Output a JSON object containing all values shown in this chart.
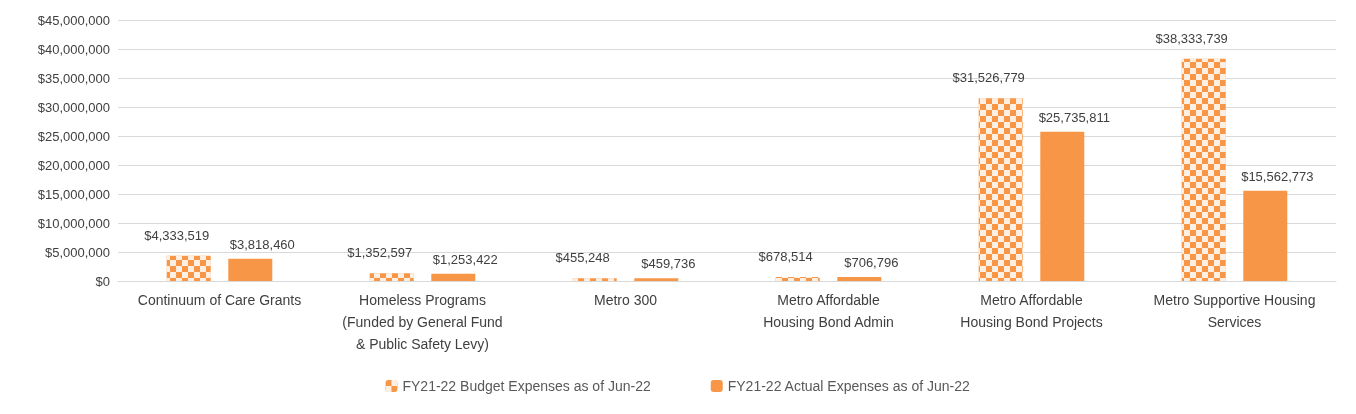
{
  "chart_data": {
    "type": "bar",
    "categories": [
      "Continuum of Care Grants",
      "Homeless Programs\n(Funded by General Fund\n& Public Safety Levy)",
      "Metro 300",
      "Metro Affordable\nHousing Bond Admin",
      "Metro Affordable\nHousing Bond Projects",
      "Metro Supportive Housing\nServices"
    ],
    "series": [
      {
        "name": "FY21-22 Budget Expenses as of Jun-22",
        "color": "#f79646",
        "values": [
          4333519,
          1352597,
          455248,
          678514,
          31526779,
          38333739
        ],
        "value_labels": [
          "$4,333,519",
          "$1,352,597",
          "$455,248",
          "$678,514",
          "$31,526,779",
          "$38,333,739"
        ]
      },
      {
        "name": "FY21-22 Actual Expenses as of Jun-22",
        "color": "#f79646",
        "values": [
          3818460,
          1253422,
          459736,
          706796,
          25735811,
          15562773
        ],
        "value_labels": [
          "$3,818,460",
          "$1,253,422",
          "$459,736",
          "$706,796",
          "$25,735,811",
          "$15,562,773"
        ]
      }
    ],
    "ylim": [
      0,
      45000000
    ],
    "yticks": [
      {
        "value": 0,
        "label": "$0"
      },
      {
        "value": 5000000,
        "label": "$5,000,000"
      },
      {
        "value": 10000000,
        "label": "$10,000,000"
      },
      {
        "value": 15000000,
        "label": "$15,000,000"
      },
      {
        "value": 20000000,
        "label": "$20,000,000"
      },
      {
        "value": 25000000,
        "label": "$25,000,000"
      },
      {
        "value": 30000000,
        "label": "$30,000,000"
      },
      {
        "value": 35000000,
        "label": "$35,000,000"
      },
      {
        "value": 40000000,
        "label": "$40,000,000"
      },
      {
        "value": 45000000,
        "label": "$45,000,000"
      }
    ],
    "grid": "y",
    "legend": "bottom"
  }
}
